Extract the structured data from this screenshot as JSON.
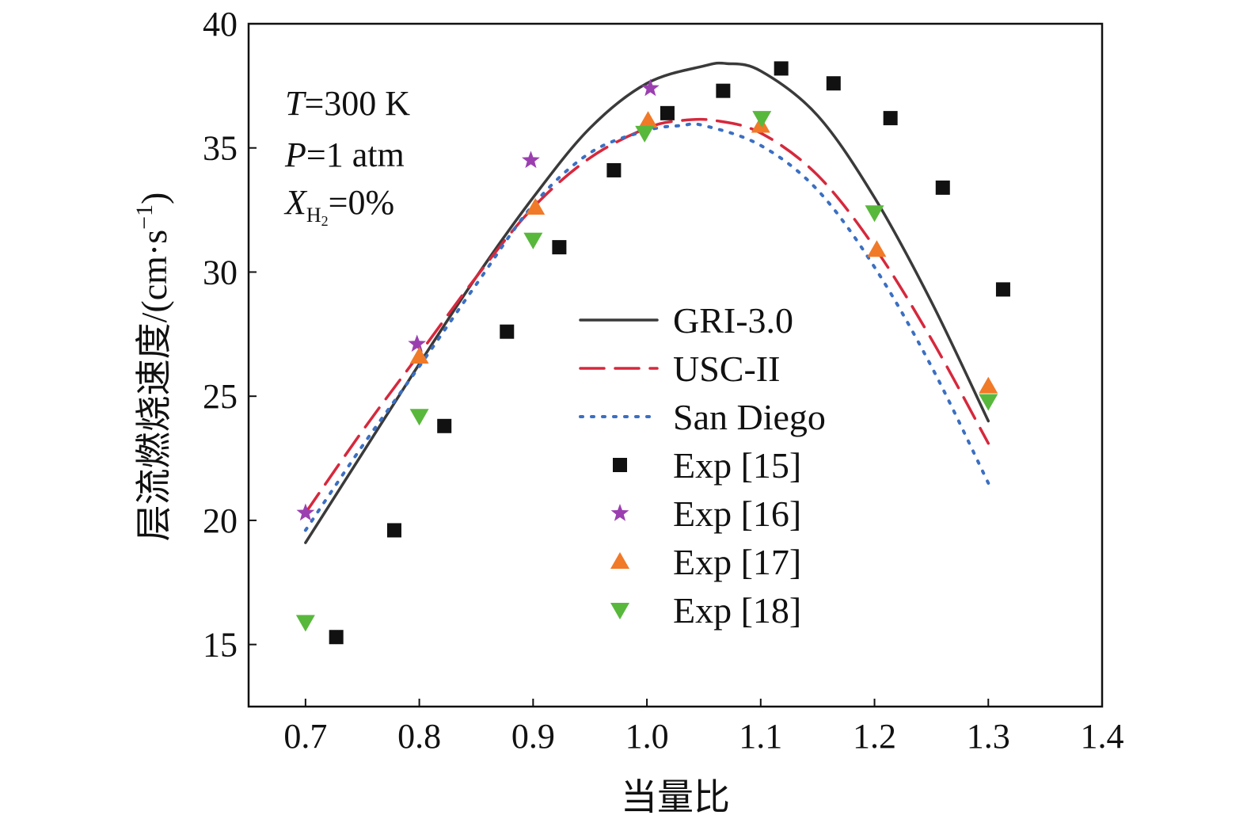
{
  "chart_data": {
    "type": "line",
    "xlabel": "当量比",
    "ylabel": "层流燃烧速度/(cm·s",
    "ylabel_sup": "−1",
    "ylabel_close": ")",
    "xlim": [
      0.65,
      1.4
    ],
    "ylim": [
      12.5,
      40
    ],
    "xticks": [
      0.7,
      0.8,
      0.9,
      1.0,
      1.1,
      1.2,
      1.3,
      1.4
    ],
    "xtick_labels": [
      "0.7",
      "0.8",
      "0.9",
      "1.0",
      "1.1",
      "1.2",
      "1.3",
      "1.4"
    ],
    "yticks": [
      15,
      20,
      25,
      30,
      35,
      40
    ],
    "ytick_labels": [
      "15",
      "20",
      "25",
      "30",
      "35",
      "40"
    ],
    "grid": false,
    "legend_position": "center",
    "conditions": [
      {
        "italic": "T",
        "rest": "=300 K"
      },
      {
        "italic": "P",
        "rest": "=1 atm"
      },
      {
        "italic": "X",
        "sub": "H",
        "subsub": "2",
        "rest": "=0%"
      }
    ],
    "series": [
      {
        "name": "GRI-3.0",
        "kind": "line",
        "dash": "solid",
        "color": "#3a3a3a",
        "x": [
          0.7,
          0.75,
          0.8,
          0.85,
          0.9,
          0.95,
          1.0,
          1.05,
          1.07,
          1.1,
          1.15,
          1.2,
          1.25,
          1.3
        ],
        "y": [
          19.1,
          22.7,
          26.3,
          29.8,
          33.0,
          35.8,
          37.6,
          38.3,
          38.4,
          38.1,
          36.3,
          33.0,
          28.8,
          24.0
        ]
      },
      {
        "name": "USC-II",
        "kind": "line",
        "dash": "dashed",
        "color": "#d6283c",
        "x": [
          0.7,
          0.75,
          0.8,
          0.85,
          0.9,
          0.95,
          1.0,
          1.03,
          1.06,
          1.1,
          1.15,
          1.2,
          1.25,
          1.3
        ],
        "y": [
          20.3,
          23.6,
          26.7,
          29.8,
          32.6,
          34.6,
          35.8,
          36.1,
          36.1,
          35.6,
          33.9,
          31.0,
          27.3,
          23.1
        ]
      },
      {
        "name": "San Diego",
        "kind": "line",
        "dash": "dotted",
        "color": "#3b6fc2",
        "x": [
          0.7,
          0.75,
          0.8,
          0.85,
          0.9,
          0.95,
          1.0,
          1.03,
          1.05,
          1.1,
          1.15,
          1.2,
          1.25,
          1.3
        ],
        "y": [
          19.6,
          23.0,
          26.2,
          29.5,
          32.7,
          34.8,
          35.7,
          35.9,
          35.9,
          35.1,
          33.3,
          30.2,
          26.2,
          21.5
        ]
      },
      {
        "name": "Exp [15]",
        "kind": "scatter",
        "marker": "square",
        "color": "#111111",
        "x": [
          0.727,
          0.778,
          0.822,
          0.877,
          0.923,
          0.971,
          1.018,
          1.067,
          1.118,
          1.164,
          1.214,
          1.26,
          1.313
        ],
        "y": [
          15.3,
          19.6,
          23.8,
          27.6,
          31.0,
          34.1,
          36.4,
          37.3,
          38.2,
          37.6,
          36.2,
          33.4,
          29.3
        ]
      },
      {
        "name": "Exp [16]",
        "kind": "scatter",
        "marker": "star",
        "color": "#9b3fb0",
        "x": [
          0.7,
          0.798,
          0.898,
          1.003
        ],
        "y": [
          20.3,
          27.1,
          34.5,
          37.4
        ]
      },
      {
        "name": "Exp [17]",
        "kind": "scatter",
        "marker": "triangle-up",
        "color": "#f07a28",
        "x": [
          0.8,
          0.902,
          1.001,
          1.1,
          1.202,
          1.3
        ],
        "y": [
          26.6,
          32.6,
          36.1,
          35.9,
          30.9,
          25.4
        ]
      },
      {
        "name": "Exp [18]",
        "kind": "scatter",
        "marker": "triangle-down",
        "color": "#58b83c",
        "x": [
          0.7,
          0.8,
          0.9,
          0.998,
          1.101,
          1.2,
          1.3
        ],
        "y": [
          15.9,
          24.2,
          31.3,
          35.6,
          36.2,
          32.4,
          24.8
        ]
      }
    ]
  }
}
